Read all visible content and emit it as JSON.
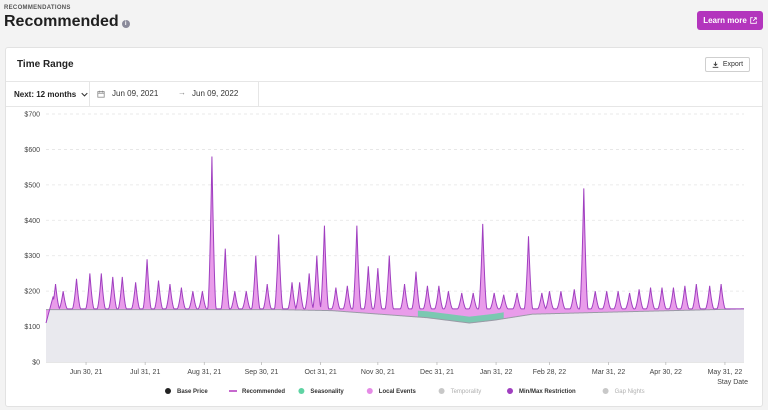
{
  "header": {
    "eyebrow": "RECOMMENDATIONS",
    "title": "Recommended",
    "info_icon": "i",
    "learn_more_label": "Learn more",
    "accent": "#b335bd"
  },
  "card": {
    "title": "Time Range",
    "export_label": "Export",
    "range_label": "Next: 12 months",
    "date_start": "Jun 09, 2021",
    "date_end": "Jun 09, 2022"
  },
  "chart_data": {
    "type": "area",
    "ylim": [
      0,
      700
    ],
    "y_ticks": [
      "$0",
      "$100",
      "$200",
      "$300",
      "$400",
      "$500",
      "$600",
      "$700"
    ],
    "x_ticks": [
      "Jun 30, 21",
      "Jul 31, 21",
      "Aug 31, 21",
      "Sep 30, 21",
      "Oct 31, 21",
      "Nov 30, 21",
      "Dec 31, 21",
      "Jan 31, 22",
      "Feb 28, 22",
      "Mar 31, 22",
      "Apr 30, 22",
      "May 31, 22"
    ],
    "x_tick_days": [
      21,
      52,
      83,
      113,
      144,
      174,
      205,
      236,
      264,
      295,
      325,
      356
    ],
    "xlabel": "Stay Date",
    "days": 366,
    "base_daily": [
      [
        0,
        148
      ],
      [
        120,
        148
      ],
      [
        150,
        145
      ],
      [
        175,
        135
      ],
      [
        200,
        125
      ],
      [
        222,
        110
      ],
      [
        235,
        118
      ],
      [
        255,
        135
      ],
      [
        290,
        140
      ],
      [
        366,
        150
      ]
    ],
    "spikes": [
      [
        5,
        220
      ],
      [
        9,
        200
      ],
      [
        16,
        235
      ],
      [
        23,
        250
      ],
      [
        29,
        250
      ],
      [
        35,
        240
      ],
      [
        40,
        240
      ],
      [
        47,
        225
      ],
      [
        53,
        290
      ],
      [
        59,
        230
      ],
      [
        65,
        220
      ],
      [
        71,
        210
      ],
      [
        77,
        200
      ],
      [
        82,
        200
      ],
      [
        87,
        580
      ],
      [
        94,
        320
      ],
      [
        99,
        200
      ],
      [
        105,
        200
      ],
      [
        110,
        300
      ],
      [
        116,
        220
      ],
      [
        122,
        360
      ],
      [
        129,
        225
      ],
      [
        133,
        225
      ],
      [
        138,
        250
      ],
      [
        142,
        300
      ],
      [
        146,
        385
      ],
      [
        152,
        210
      ],
      [
        158,
        215
      ],
      [
        163,
        385
      ],
      [
        169,
        270
      ],
      [
        174,
        265
      ],
      [
        180,
        300
      ],
      [
        188,
        220
      ],
      [
        194,
        255
      ],
      [
        200,
        215
      ],
      [
        206,
        215
      ],
      [
        211,
        200
      ],
      [
        218,
        195
      ],
      [
        224,
        195
      ],
      [
        229,
        390
      ],
      [
        235,
        195
      ],
      [
        240,
        190
      ],
      [
        247,
        195
      ],
      [
        253,
        355
      ],
      [
        260,
        195
      ],
      [
        264,
        200
      ],
      [
        270,
        200
      ],
      [
        277,
        205
      ],
      [
        282,
        490
      ],
      [
        288,
        200
      ],
      [
        294,
        200
      ],
      [
        300,
        200
      ],
      [
        306,
        195
      ],
      [
        311,
        205
      ],
      [
        317,
        210
      ],
      [
        323,
        210
      ],
      [
        329,
        210
      ],
      [
        335,
        215
      ],
      [
        341,
        220
      ],
      [
        348,
        215
      ],
      [
        354,
        220
      ]
    ],
    "legend": [
      {
        "label": "Base Price",
        "color": "#222222",
        "shape": "dot",
        "muted": false
      },
      {
        "label": "Recommended",
        "color": "#b335bd",
        "shape": "line",
        "muted": false
      },
      {
        "label": "Seasonality",
        "color": "#5fd3a3",
        "shape": "dot",
        "muted": false
      },
      {
        "label": "Local Events",
        "color": "#e58be6",
        "shape": "dot",
        "muted": false
      },
      {
        "label": "Temporality",
        "color": "#c8c8c8",
        "shape": "dot",
        "muted": true
      },
      {
        "label": "Min/Max Restriction",
        "color": "#a03fc0",
        "shape": "dot",
        "muted": false
      },
      {
        "label": "Gap Nights",
        "color": "#c8c8c8",
        "shape": "dot",
        "muted": true
      }
    ],
    "grid": true
  }
}
